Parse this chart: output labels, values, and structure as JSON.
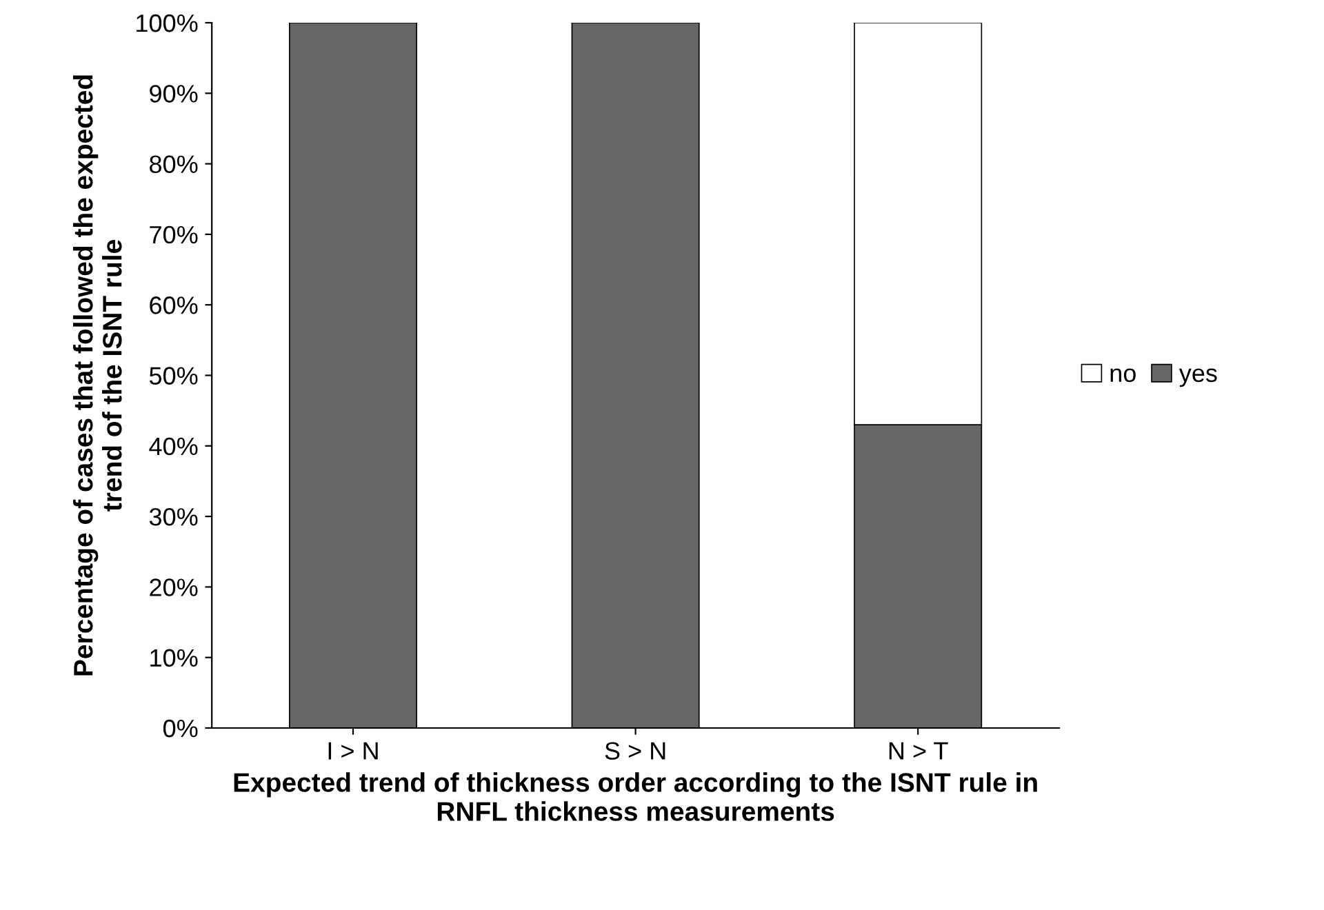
{
  "chart_data": {
    "type": "bar",
    "stacked": true,
    "xlabel": "Expected trend of thickness order according to the ISNT rule in\nRNFL thickness measurements",
    "ylabel": "Percentage of cases that followed the expected\ntrend of the ISNT rule",
    "categories": [
      "I > N",
      "S > N",
      "N > T"
    ],
    "series": [
      {
        "name": "yes",
        "color": "#666666",
        "values": [
          100,
          100,
          43
        ]
      },
      {
        "name": "no",
        "color": "#ffffff",
        "values": [
          0,
          0,
          57
        ]
      }
    ],
    "ylim": [
      0,
      100
    ],
    "yticks": [
      {
        "value": 0,
        "label": "0%"
      },
      {
        "value": 10,
        "label": "10%"
      },
      {
        "value": 20,
        "label": "20%"
      },
      {
        "value": 30,
        "label": "30%"
      },
      {
        "value": 40,
        "label": "40%"
      },
      {
        "value": 50,
        "label": "50%"
      },
      {
        "value": 60,
        "label": "60%"
      },
      {
        "value": 70,
        "label": "70%"
      },
      {
        "value": 80,
        "label": "80%"
      },
      {
        "value": 90,
        "label": "90%"
      },
      {
        "value": 100,
        "label": "100%"
      }
    ],
    "grid": false,
    "legend": "right"
  }
}
